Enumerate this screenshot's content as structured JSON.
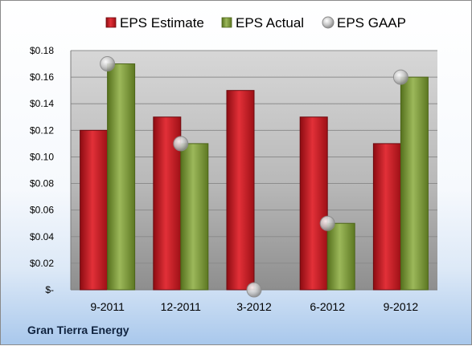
{
  "company_label": "Gran Tierra Energy",
  "chart_data": {
    "type": "bar",
    "categories": [
      "9-2011",
      "12-2011",
      "3-2012",
      "6-2012",
      "9-2012"
    ],
    "series": [
      {
        "name": "EPS Estimate",
        "kind": "bar",
        "color": "#c0161e",
        "values": [
          0.12,
          0.13,
          0.15,
          0.13,
          0.11
        ]
      },
      {
        "name": "EPS Actual",
        "kind": "bar",
        "color": "#7f9a35",
        "values": [
          0.17,
          0.11,
          null,
          0.05,
          0.16
        ]
      },
      {
        "name": "EPS GAAP",
        "kind": "marker",
        "color": "#b8b8b8",
        "values": [
          0.17,
          0.11,
          0.0,
          0.05,
          0.16
        ]
      }
    ],
    "y_ticks": [
      "$-",
      "$0.02",
      "$0.04",
      "$0.06",
      "$0.08",
      "$0.10",
      "$0.12",
      "$0.14",
      "$0.16",
      "$0.18"
    ],
    "ylim": [
      0,
      0.18
    ],
    "grid": true,
    "legend_position": "top"
  }
}
